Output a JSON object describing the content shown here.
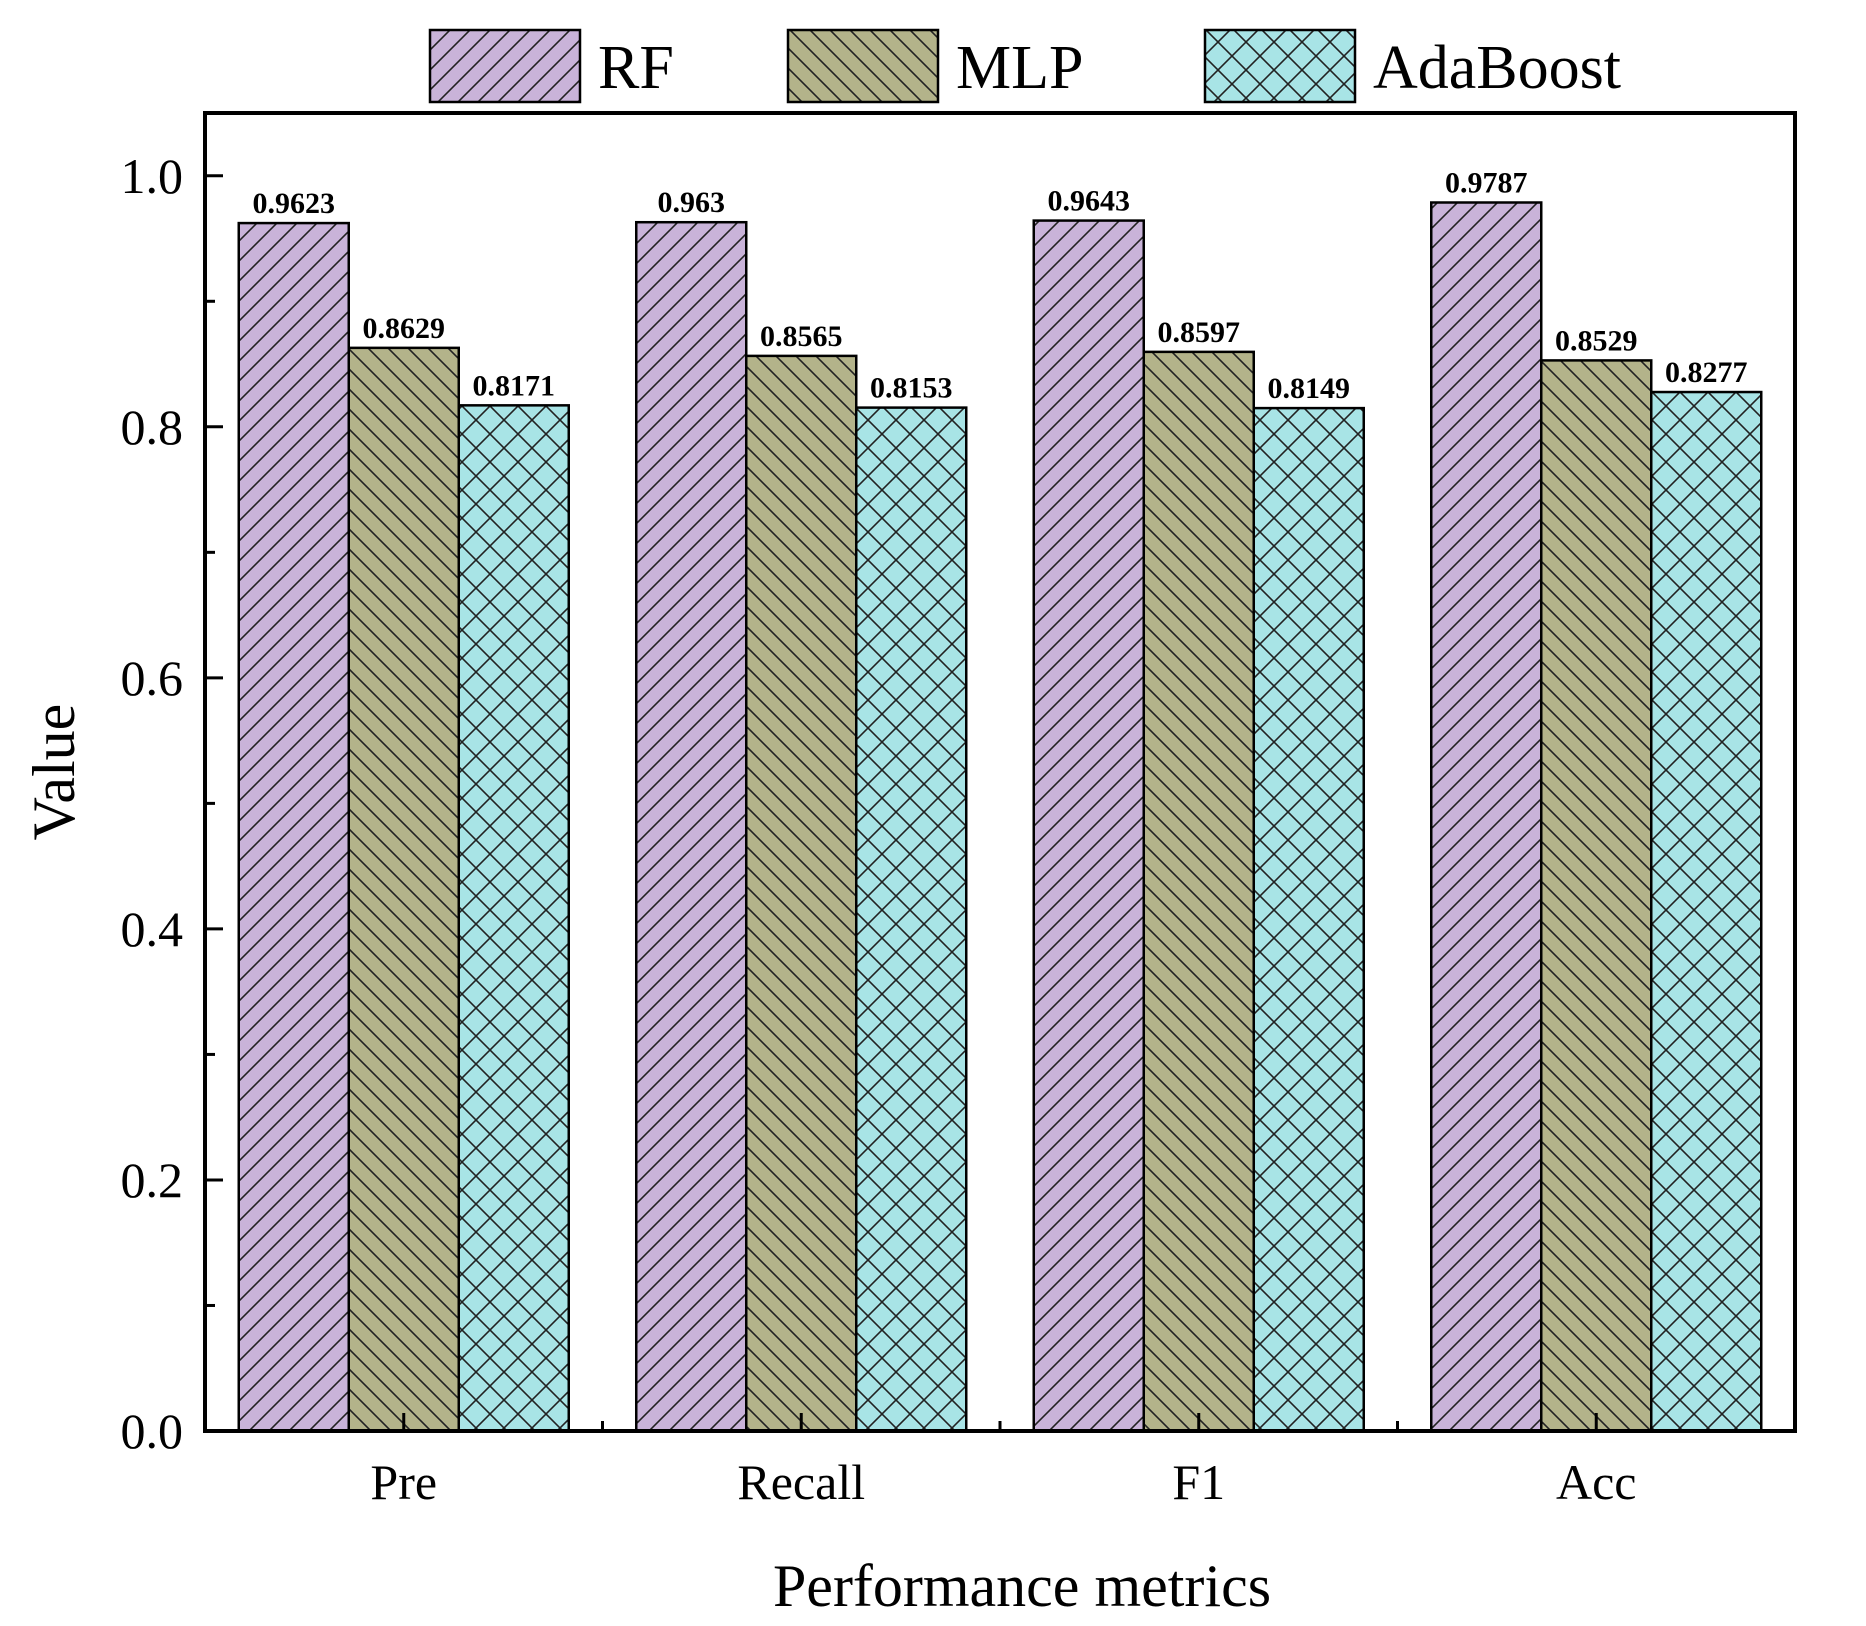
{
  "chart_data": {
    "type": "bar",
    "title": "",
    "xlabel": "Performance metrics",
    "ylabel": "Value",
    "ylim": [
      0.0,
      1.05
    ],
    "yticks": [
      "0.0",
      "0.2",
      "0.4",
      "0.6",
      "0.8",
      "1.0"
    ],
    "categories": [
      "Pre",
      "Recall",
      "F1",
      "Acc"
    ],
    "series": [
      {
        "name": "RF",
        "values": [
          0.9623,
          0.963,
          0.9643,
          0.9787
        ],
        "labels": [
          "0.9623",
          "0.963",
          "0.9643",
          "0.9787"
        ],
        "color": "#c9b3d9",
        "pattern": "forward-diagonal"
      },
      {
        "name": "MLP",
        "values": [
          0.8629,
          0.8565,
          0.8597,
          0.8529
        ],
        "labels": [
          "0.8629",
          "0.8565",
          "0.8597",
          "0.8529"
        ],
        "color": "#b3b38a",
        "pattern": "back-diagonal"
      },
      {
        "name": "AdaBoost",
        "values": [
          0.8171,
          0.8153,
          0.8149,
          0.8277
        ],
        "labels": [
          "0.8171",
          "0.8153",
          "0.8149",
          "0.8277"
        ],
        "color": "#a8e4e6",
        "pattern": "crosshatch"
      }
    ],
    "legend": "top",
    "grid": false
  }
}
